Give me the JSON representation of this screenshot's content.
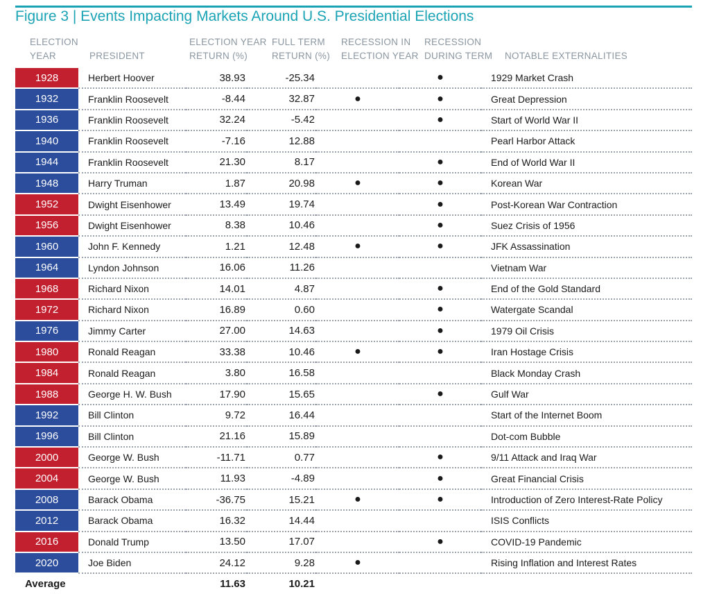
{
  "title": "Figure 3 | Events Impacting Markets Around U.S. Presidential Elections",
  "headers": {
    "year": [
      "ELECTION",
      "YEAR"
    ],
    "president": [
      "PRESIDENT"
    ],
    "election_return": [
      "ELECTION YEAR",
      "RETURN (%)"
    ],
    "term_return": [
      "FULL TERM",
      "RETURN (%)"
    ],
    "recession_election": [
      "RECESSION IN",
      "ELECTION YEAR"
    ],
    "recession_term": [
      "RECESSION",
      "DURING TERM"
    ],
    "externalities": [
      "NOTABLE EXTERNALITIES"
    ]
  },
  "colors": {
    "democrat": "#2b4d9c",
    "republican": "#c2202f",
    "accent": "#1aa3b5"
  },
  "dot_symbol": "●",
  "rows": [
    {
      "year": "1928",
      "party": "rep",
      "president": "Herbert Hoover",
      "election_return": "38.93",
      "term_return": "-25.34",
      "rec_election": false,
      "rec_term": true,
      "externality": "1929 Market Crash"
    },
    {
      "year": "1932",
      "party": "dem",
      "president": "Franklin Roosevelt",
      "election_return": "-8.44",
      "term_return": "32.87",
      "rec_election": true,
      "rec_term": true,
      "externality": "Great Depression"
    },
    {
      "year": "1936",
      "party": "dem",
      "president": "Franklin Roosevelt",
      "election_return": "32.24",
      "term_return": "-5.42",
      "rec_election": false,
      "rec_term": true,
      "externality": "Start of World War II"
    },
    {
      "year": "1940",
      "party": "dem",
      "president": "Franklin Roosevelt",
      "election_return": "-7.16",
      "term_return": "12.88",
      "rec_election": false,
      "rec_term": false,
      "externality": "Pearl Harbor Attack"
    },
    {
      "year": "1944",
      "party": "dem",
      "president": "Franklin Roosevelt",
      "election_return": "21.30",
      "term_return": "8.17",
      "rec_election": false,
      "rec_term": true,
      "externality": "End of World War II"
    },
    {
      "year": "1948",
      "party": "dem",
      "president": "Harry Truman",
      "election_return": "1.87",
      "term_return": "20.98",
      "rec_election": true,
      "rec_term": true,
      "externality": "Korean War"
    },
    {
      "year": "1952",
      "party": "rep",
      "president": "Dwight Eisenhower",
      "election_return": "13.49",
      "term_return": "19.74",
      "rec_election": false,
      "rec_term": true,
      "externality": "Post-Korean War Contraction"
    },
    {
      "year": "1956",
      "party": "rep",
      "president": "Dwight Eisenhower",
      "election_return": "8.38",
      "term_return": "10.46",
      "rec_election": false,
      "rec_term": true,
      "externality": "Suez Crisis of 1956"
    },
    {
      "year": "1960",
      "party": "dem",
      "president": "John F. Kennedy",
      "election_return": "1.21",
      "term_return": "12.48",
      "rec_election": true,
      "rec_term": true,
      "externality": "JFK Assassination"
    },
    {
      "year": "1964",
      "party": "dem",
      "president": "Lyndon Johnson",
      "election_return": "16.06",
      "term_return": "11.26",
      "rec_election": false,
      "rec_term": false,
      "externality": "Vietnam War"
    },
    {
      "year": "1968",
      "party": "rep",
      "president": "Richard Nixon",
      "election_return": "14.01",
      "term_return": "4.87",
      "rec_election": false,
      "rec_term": true,
      "externality": "End of the Gold Standard"
    },
    {
      "year": "1972",
      "party": "rep",
      "president": "Richard Nixon",
      "election_return": "16.89",
      "term_return": "0.60",
      "rec_election": false,
      "rec_term": true,
      "externality": "Watergate Scandal"
    },
    {
      "year": "1976",
      "party": "dem",
      "president": "Jimmy Carter",
      "election_return": "27.00",
      "term_return": "14.63",
      "rec_election": false,
      "rec_term": true,
      "externality": "1979 Oil Crisis"
    },
    {
      "year": "1980",
      "party": "rep",
      "president": "Ronald Reagan",
      "election_return": "33.38",
      "term_return": "10.46",
      "rec_election": true,
      "rec_term": true,
      "externality": "Iran Hostage Crisis"
    },
    {
      "year": "1984",
      "party": "rep",
      "president": "Ronald Reagan",
      "election_return": "3.80",
      "term_return": "16.58",
      "rec_election": false,
      "rec_term": false,
      "externality": "Black Monday Crash"
    },
    {
      "year": "1988",
      "party": "rep",
      "president": "George H. W. Bush",
      "election_return": "17.90",
      "term_return": "15.65",
      "rec_election": false,
      "rec_term": true,
      "externality": "Gulf War"
    },
    {
      "year": "1992",
      "party": "dem",
      "president": "Bill Clinton",
      "election_return": "9.72",
      "term_return": "16.44",
      "rec_election": false,
      "rec_term": false,
      "externality": "Start of the Internet Boom"
    },
    {
      "year": "1996",
      "party": "dem",
      "president": "Bill Clinton",
      "election_return": "21.16",
      "term_return": "15.89",
      "rec_election": false,
      "rec_term": false,
      "externality": "Dot-com Bubble"
    },
    {
      "year": "2000",
      "party": "rep",
      "president": "George W. Bush",
      "election_return": "-11.71",
      "term_return": "0.77",
      "rec_election": false,
      "rec_term": true,
      "externality": "9/11 Attack and Iraq War"
    },
    {
      "year": "2004",
      "party": "rep",
      "president": "George W. Bush",
      "election_return": "11.93",
      "term_return": "-4.89",
      "rec_election": false,
      "rec_term": true,
      "externality": "Great Financial Crisis"
    },
    {
      "year": "2008",
      "party": "dem",
      "president": "Barack Obama",
      "election_return": "-36.75",
      "term_return": "15.21",
      "rec_election": true,
      "rec_term": true,
      "externality": "Introduction of Zero Interest-Rate Policy"
    },
    {
      "year": "2012",
      "party": "dem",
      "president": "Barack Obama",
      "election_return": "16.32",
      "term_return": "14.44",
      "rec_election": false,
      "rec_term": false,
      "externality": "ISIS Conflicts"
    },
    {
      "year": "2016",
      "party": "rep",
      "president": "Donald Trump",
      "election_return": "13.50",
      "term_return": "17.07",
      "rec_election": false,
      "rec_term": true,
      "externality": "COVID-19 Pandemic"
    },
    {
      "year": "2020",
      "party": "dem",
      "president": "Joe Biden",
      "election_return": "24.12",
      "term_return": "9.28",
      "rec_election": true,
      "rec_term": false,
      "externality": "Rising Inflation and Interest Rates"
    }
  ],
  "average": {
    "label": "Average",
    "election_return": "11.63",
    "term_return": "10.21"
  }
}
